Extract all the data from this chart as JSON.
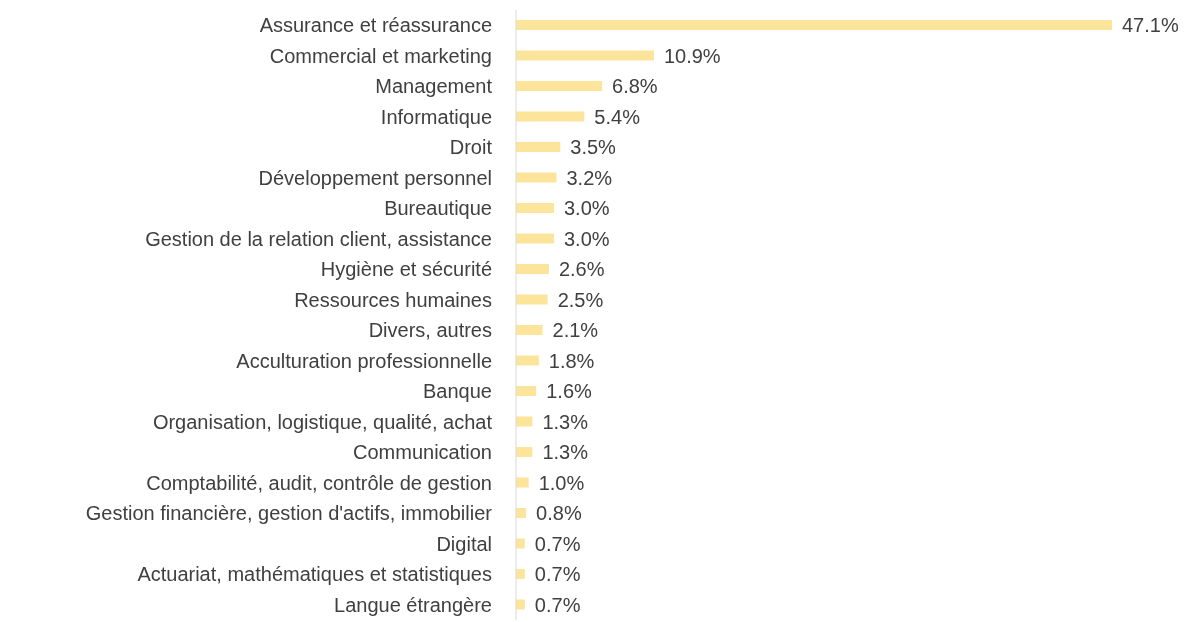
{
  "chart_data": {
    "type": "bar",
    "orientation": "horizontal",
    "tick_labels": "y",
    "color": "#fde49b",
    "categories": [
      "Assurance et réassurance",
      "Commercial et marketing",
      "Management",
      "Informatique",
      "Droit",
      "Développement personnel",
      "Bureautique",
      "Gestion de la relation client, assistance",
      "Hygiène et sécurité",
      "Ressources humaines",
      "Divers, autres",
      "Acculturation professionnelle",
      "Banque",
      "Organisation, logistique, qualité, achat",
      "Communication",
      "Comptabilité, audit, contrôle de gestion",
      "Gestion financière, gestion d'actifs, immobilier",
      "Digital",
      "Actuariat, mathématiques et statistiques",
      "Langue étrangère"
    ],
    "values": [
      47.1,
      10.9,
      6.8,
      5.4,
      3.5,
      3.2,
      3.0,
      3.0,
      2.6,
      2.5,
      2.1,
      1.8,
      1.6,
      1.3,
      1.3,
      1.0,
      0.8,
      0.7,
      0.7,
      0.7
    ],
    "value_labels": [
      "47.1%",
      "10.9%",
      "6.8%",
      "5.4%",
      "3.5%",
      "3.2%",
      "3.0%",
      "3.0%",
      "2.6%",
      "2.5%",
      "2.1%",
      "1.8%",
      "1.6%",
      "1.3%",
      "1.3%",
      "1.0%",
      "0.8%",
      "0.7%",
      "0.7%",
      "0.7%"
    ]
  }
}
